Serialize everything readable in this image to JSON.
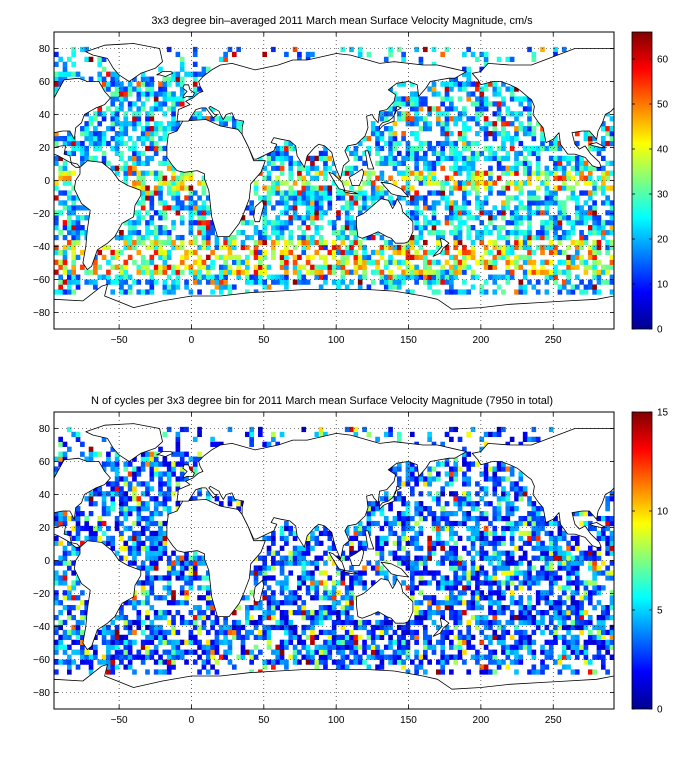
{
  "chart_data": [
    {
      "type": "heatmap",
      "title": "3x3 degree bin–averaged 2011 March mean Surface Velocity Magnitude, cm/s",
      "xlabel": "",
      "ylabel": "",
      "xlim": [
        -95,
        292
      ],
      "ylim": [
        -90,
        90
      ],
      "xticks": [
        -50,
        0,
        50,
        100,
        150,
        200,
        250
      ],
      "yticks": [
        -80,
        -60,
        -40,
        -20,
        0,
        20,
        40,
        60,
        80
      ],
      "grid": "dotted",
      "colormap": "jet",
      "clim": [
        0,
        66
      ],
      "colorbar_ticks": [
        0,
        10,
        20,
        30,
        40,
        50,
        60
      ],
      "bin_size_deg": 3,
      "seed": 2011
    },
    {
      "type": "heatmap",
      "title": "N of cycles per 3x3 degree bin for 2011 March mean Surface Velocity Magnitude (7950 in total)",
      "xlabel": "",
      "ylabel": "",
      "xlim": [
        -95,
        292
      ],
      "ylim": [
        -90,
        90
      ],
      "xticks": [
        -50,
        0,
        50,
        100,
        150,
        200,
        250
      ],
      "yticks": [
        -80,
        -60,
        -40,
        -20,
        0,
        20,
        40,
        60,
        80
      ],
      "grid": "dotted",
      "colormap": "jet",
      "clim": [
        0,
        15
      ],
      "colorbar_ticks": [
        0,
        5,
        10,
        15
      ],
      "bin_size_deg": 3,
      "seed": 7950
    }
  ]
}
